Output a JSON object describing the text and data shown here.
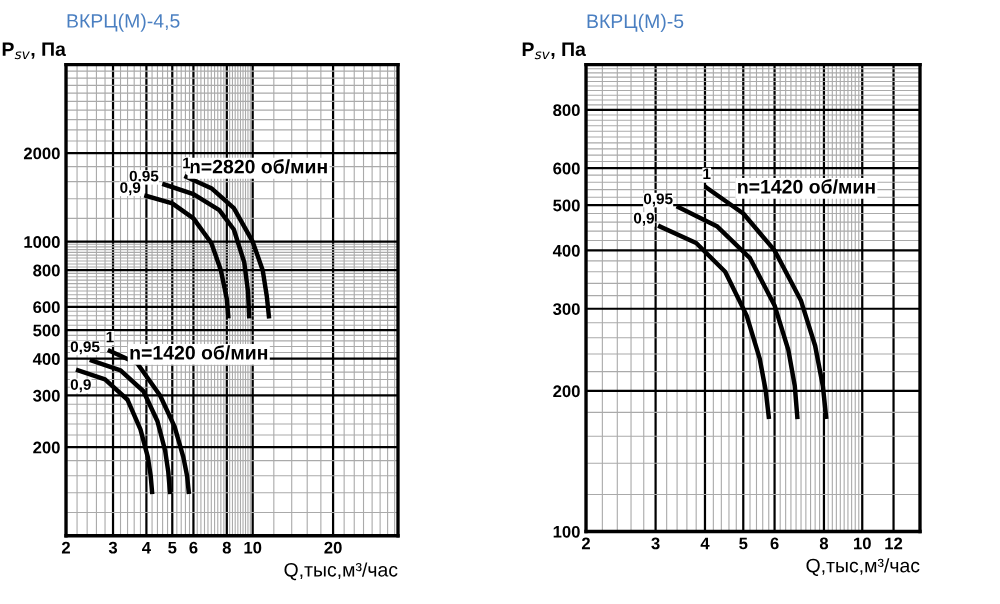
{
  "chart_data": [
    {
      "type": "line",
      "title": "ВКРЦ(М)-4,5",
      "ylabel": "P$_{sv}$, Па",
      "xlabel": "Q,тыс,м³/час",
      "log": "xy",
      "grid": true,
      "xlim": [
        2,
        35
      ],
      "ylim": [
        100,
        4000
      ],
      "xticks": [
        2,
        3,
        4,
        5,
        6,
        8,
        10,
        20
      ],
      "yticks": [
        200,
        300,
        400,
        500,
        600,
        800,
        1000,
        2000
      ],
      "series": [
        {
          "name": "0,9",
          "color": "#000000",
          "x": [
            4.0,
            5.0,
            6.0,
            7.0,
            7.6,
            8.0,
            8.1
          ],
          "values": [
            1430,
            1350,
            1200,
            990,
            800,
            640,
            558
          ]
        },
        {
          "name": "0,95",
          "color": "#000000",
          "x": [
            4.67,
            6.0,
            7.5,
            8.5,
            9.3,
            9.6,
            9.7
          ],
          "values": [
            1565,
            1450,
            1280,
            1100,
            850,
            680,
            558
          ]
        },
        {
          "name": "1",
          "color": "#000000",
          "x": [
            5.65,
            7.0,
            8.5,
            10.0,
            10.9,
            11.3,
            11.5
          ],
          "values": [
            1660,
            1520,
            1300,
            1000,
            800,
            650,
            558
          ]
        },
        {
          "name": "0,9",
          "color": "#000000",
          "x": [
            2.22,
            2.8,
            3.4,
            3.8,
            4.05,
            4.15,
            4.2
          ],
          "values": [
            365,
            340,
            290,
            230,
            185,
            160,
            141
          ]
        },
        {
          "name": "0,95",
          "color": "#000000",
          "x": [
            2.5,
            3.2,
            3.9,
            4.4,
            4.7,
            4.83,
            4.9
          ],
          "values": [
            394,
            365,
            310,
            245,
            195,
            165,
            141
          ]
        },
        {
          "name": "1",
          "color": "#000000",
          "x": [
            2.92,
            3.7,
            4.5,
            5.1,
            5.5,
            5.68,
            5.76
          ],
          "values": [
            425,
            385,
            300,
            235,
            185,
            160,
            141
          ]
        }
      ],
      "annotations": [
        "n=2820 об/мин",
        "n=1420 об/мин"
      ]
    },
    {
      "type": "line",
      "title": "ВКРЦ(М)-5",
      "ylabel": "P$_{sv}$, Па",
      "xlabel": "Q,тыс,м³/час",
      "log": "xy",
      "grid": true,
      "xlim": [
        2,
        14
      ],
      "ylim": [
        100,
        1000
      ],
      "xticks": [
        2,
        3,
        4,
        5,
        6,
        8,
        10,
        12
      ],
      "yticks": [
        100,
        200,
        300,
        400,
        500,
        600,
        800
      ],
      "series": [
        {
          "name": "0,9",
          "color": "#000000",
          "x": [
            3.08,
            3.8,
            4.5,
            5.1,
            5.5,
            5.7,
            5.8
          ],
          "values": [
            450,
            415,
            360,
            290,
            235,
            200,
            176
          ]
        },
        {
          "name": "0,95",
          "color": "#000000",
          "x": [
            3.43,
            4.3,
            5.2,
            6.0,
            6.5,
            6.75,
            6.85
          ],
          "values": [
            495,
            450,
            385,
            305,
            245,
            205,
            176
          ]
        },
        {
          "name": "1",
          "color": "#000000",
          "x": [
            4.04,
            5.0,
            6.0,
            7.0,
            7.6,
            7.95,
            8.1
          ],
          "values": [
            545,
            480,
            400,
            312,
            250,
            205,
            176
          ]
        }
      ],
      "annotations": [
        "n=1420 об/мин"
      ]
    }
  ]
}
